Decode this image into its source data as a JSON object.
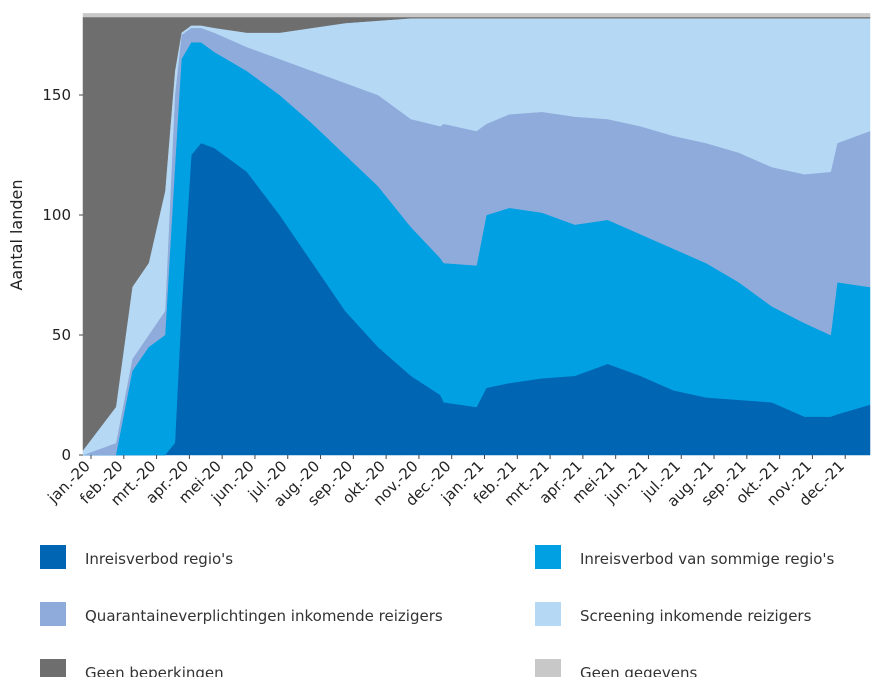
{
  "chart_data": {
    "type": "stacked-area",
    "y_label": "Aantal landen",
    "x": [
      0,
      1,
      1.5,
      2,
      2.5,
      2.8,
      3,
      3.3,
      3.6,
      4,
      5,
      6,
      7,
      8,
      9,
      10,
      10.9,
      11,
      12,
      12.3,
      13,
      14,
      15,
      16,
      17,
      18,
      19,
      20,
      21,
      22,
      22.8,
      23,
      24
    ],
    "xlim": [
      0,
      24
    ],
    "xticks": [
      {
        "value": 0,
        "label": "jan.-20"
      },
      {
        "value": 1,
        "label": "feb.-20"
      },
      {
        "value": 2,
        "label": "mrt.-20"
      },
      {
        "value": 3,
        "label": "apr.-20"
      },
      {
        "value": 4,
        "label": "mei-20"
      },
      {
        "value": 5,
        "label": "jun.-20"
      },
      {
        "value": 6,
        "label": "jul.-20"
      },
      {
        "value": 7,
        "label": "aug.-20"
      },
      {
        "value": 8,
        "label": "sep.-20"
      },
      {
        "value": 9,
        "label": "okt.-20"
      },
      {
        "value": 10,
        "label": "nov.-20"
      },
      {
        "value": 11,
        "label": "dec.-20"
      },
      {
        "value": 12,
        "label": "jan.-21"
      },
      {
        "value": 13,
        "label": "feb.-21"
      },
      {
        "value": 14,
        "label": "mrt.-21"
      },
      {
        "value": 15,
        "label": "apr.-21"
      },
      {
        "value": 16,
        "label": "mei-21"
      },
      {
        "value": 17,
        "label": "jun.-21"
      },
      {
        "value": 18,
        "label": "jul.-21"
      },
      {
        "value": 19,
        "label": "aug.-21"
      },
      {
        "value": 20,
        "label": "sep.-21"
      },
      {
        "value": 21,
        "label": "okt.-21"
      },
      {
        "value": 22,
        "label": "nov.-21"
      },
      {
        "value": 23,
        "label": "dec.-21"
      }
    ],
    "ylim": [
      0,
      184
    ],
    "yticks": [
      0,
      50,
      100,
      150
    ],
    "grid": false,
    "series": [
      {
        "name": "Inreisverbod regio's",
        "color": "#0066b3",
        "values": [
          0,
          0,
          0,
          0,
          0,
          5,
          60,
          125,
          130,
          128,
          118,
          100,
          80,
          60,
          45,
          33,
          25,
          22,
          20,
          28,
          30,
          32,
          33,
          38,
          33,
          27,
          24,
          23,
          22,
          16,
          16,
          17,
          21
        ]
      },
      {
        "name": "Inreisverbod van sommige regio's",
        "color": "#00a0e2",
        "values": [
          0,
          0,
          35,
          45,
          50,
          115,
          105,
          47,
          42,
          40,
          42,
          50,
          58,
          65,
          67,
          62,
          57,
          58,
          59,
          72,
          73,
          69,
          63,
          60,
          59,
          59,
          56,
          49,
          40,
          39,
          34,
          55,
          49
        ]
      },
      {
        "name": "Quarantaineverplichtingen inkomende reizigers",
        "color": "#8fabdb",
        "values": [
          0,
          5,
          5,
          5,
          10,
          30,
          10,
          6,
          6,
          8,
          10,
          15,
          22,
          30,
          38,
          45,
          55,
          58,
          56,
          38,
          39,
          42,
          45,
          42,
          45,
          47,
          50,
          54,
          58,
          62,
          68,
          58,
          65
        ]
      },
      {
        "name": "Screening inkomende reizigers",
        "color": "#b5d8f4",
        "values": [
          2,
          15,
          30,
          30,
          50,
          10,
          1,
          1,
          1,
          2,
          6,
          11,
          18,
          25,
          31,
          42,
          45,
          44,
          47,
          44,
          40,
          39,
          41,
          42,
          45,
          49,
          52,
          56,
          62,
          65,
          64,
          52,
          47
        ]
      },
      {
        "name": "Geen beperkingen",
        "color": "#6e6e6e",
        "values": [
          180.5,
          162.5,
          112.5,
          102.5,
          72.5,
          22.5,
          6.5,
          3.5,
          3.5,
          4.5,
          6.5,
          6.5,
          4.5,
          2.5,
          1.5,
          0.5,
          0.5,
          0.5,
          0.5,
          0.5,
          0.5,
          0.5,
          0.5,
          0.5,
          0.5,
          0.5,
          0.5,
          0.5,
          0.5,
          0.5,
          0.5,
          0.5,
          0.5
        ]
      },
      {
        "name": "Geen gegevens",
        "color": "#c8c8c8",
        "values": [
          1.5,
          1.5,
          1.5,
          1.5,
          1.5,
          1.5,
          1.5,
          1.5,
          1.5,
          1.5,
          1.5,
          1.5,
          1.5,
          1.5,
          1.5,
          1.5,
          1.5,
          1.5,
          1.5,
          1.5,
          1.5,
          1.5,
          1.5,
          1.5,
          1.5,
          1.5,
          1.5,
          1.5,
          1.5,
          1.5,
          1.5,
          1.5,
          1.5
        ]
      }
    ]
  }
}
